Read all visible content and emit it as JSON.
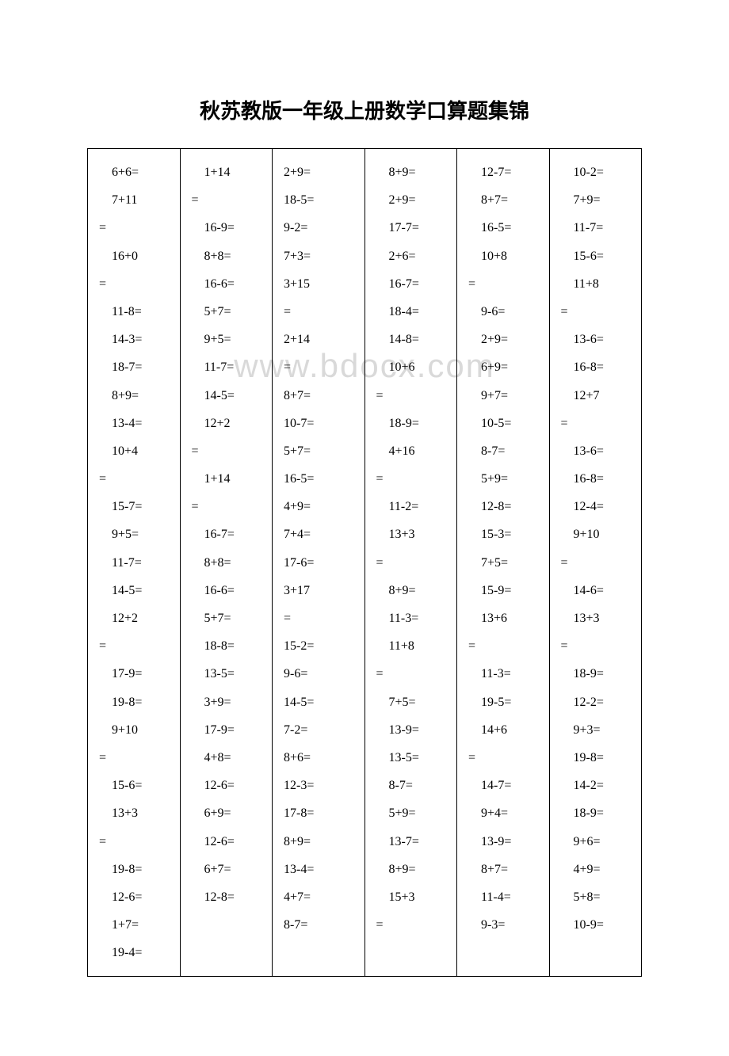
{
  "title": "秋苏教版一年级上册数学口算题集锦",
  "watermark": "www.bdocx.com",
  "columns": [
    "    6+6=\n    7+11\n=\n    16+0\n=\n    11-8=\n    14-3=\n    18-7=\n    8+9=\n    13-4=\n    10+4\n=\n    15-7=\n    9+5=\n    11-7=\n    14-5=\n    12+2\n=\n    17-9=\n    19-8=\n    9+10\n=\n    15-6=\n    13+3\n=\n    19-8=\n    12-6=\n    1+7=\n    19-4=",
    "    1+14\n=\n    16-9=\n    8+8=\n    16-6=\n    5+7=\n    9+5=\n    11-7=\n    14-5=\n    12+2\n=\n    1+14\n=\n    16-7=\n    8+8=\n    16-6=\n    5+7=\n    18-8=\n    13-5=\n    3+9=\n    17-9=\n    4+8=\n    12-6=\n    6+9=\n    12-6=\n    6+7=\n    12-8=",
    "2+9=\n18-5=\n9-2=\n7+3=\n3+15\n=\n2+14\n=\n8+7=\n10-7=\n5+7=\n16-5=\n4+9=\n7+4=\n17-6=\n3+17\n=\n15-2=\n9-6=\n14-5=\n7-2=\n8+6=\n12-3=\n17-8=\n8+9=\n13-4=\n4+7=\n8-7=",
    "    8+9=\n    2+9=\n    17-7=\n    2+6=\n    16-7=\n    18-4=\n    14-8=\n    10+6\n=\n    18-9=\n    4+16\n=\n    11-2=\n    13+3\n=\n    8+9=\n    11-3=\n    11+8\n=\n    7+5=\n    13-9=\n    13-5=\n    8-7=\n    5+9=\n    13-7=\n    8+9=\n    15+3\n=",
    "    12-7=\n    8+7=\n    16-5=\n    10+8\n=\n    9-6=\n    2+9=\n    6+9=\n    9+7=\n    10-5=\n    8-7=\n    5+9=\n    12-8=\n    15-3=\n    7+5=\n    15-9=\n    13+6\n=\n    11-3=\n    19-5=\n    14+6\n=\n    14-7=\n    9+4=\n    13-9=\n    8+7=\n    11-4=\n    9-3=",
    "    10-2=\n    7+9=\n    11-7=\n    15-6=\n    11+8\n=\n    13-6=\n    16-8=\n    12+7\n=\n    13-6=\n    16-8=\n    12-4=\n    9+10\n=\n    14-6=\n    13+3\n=\n    18-9=\n    12-2=\n    9+3=\n    19-8=\n    14-2=\n    18-9=\n    9+6=\n    4+9=\n    5+8=\n    10-9="
  ]
}
